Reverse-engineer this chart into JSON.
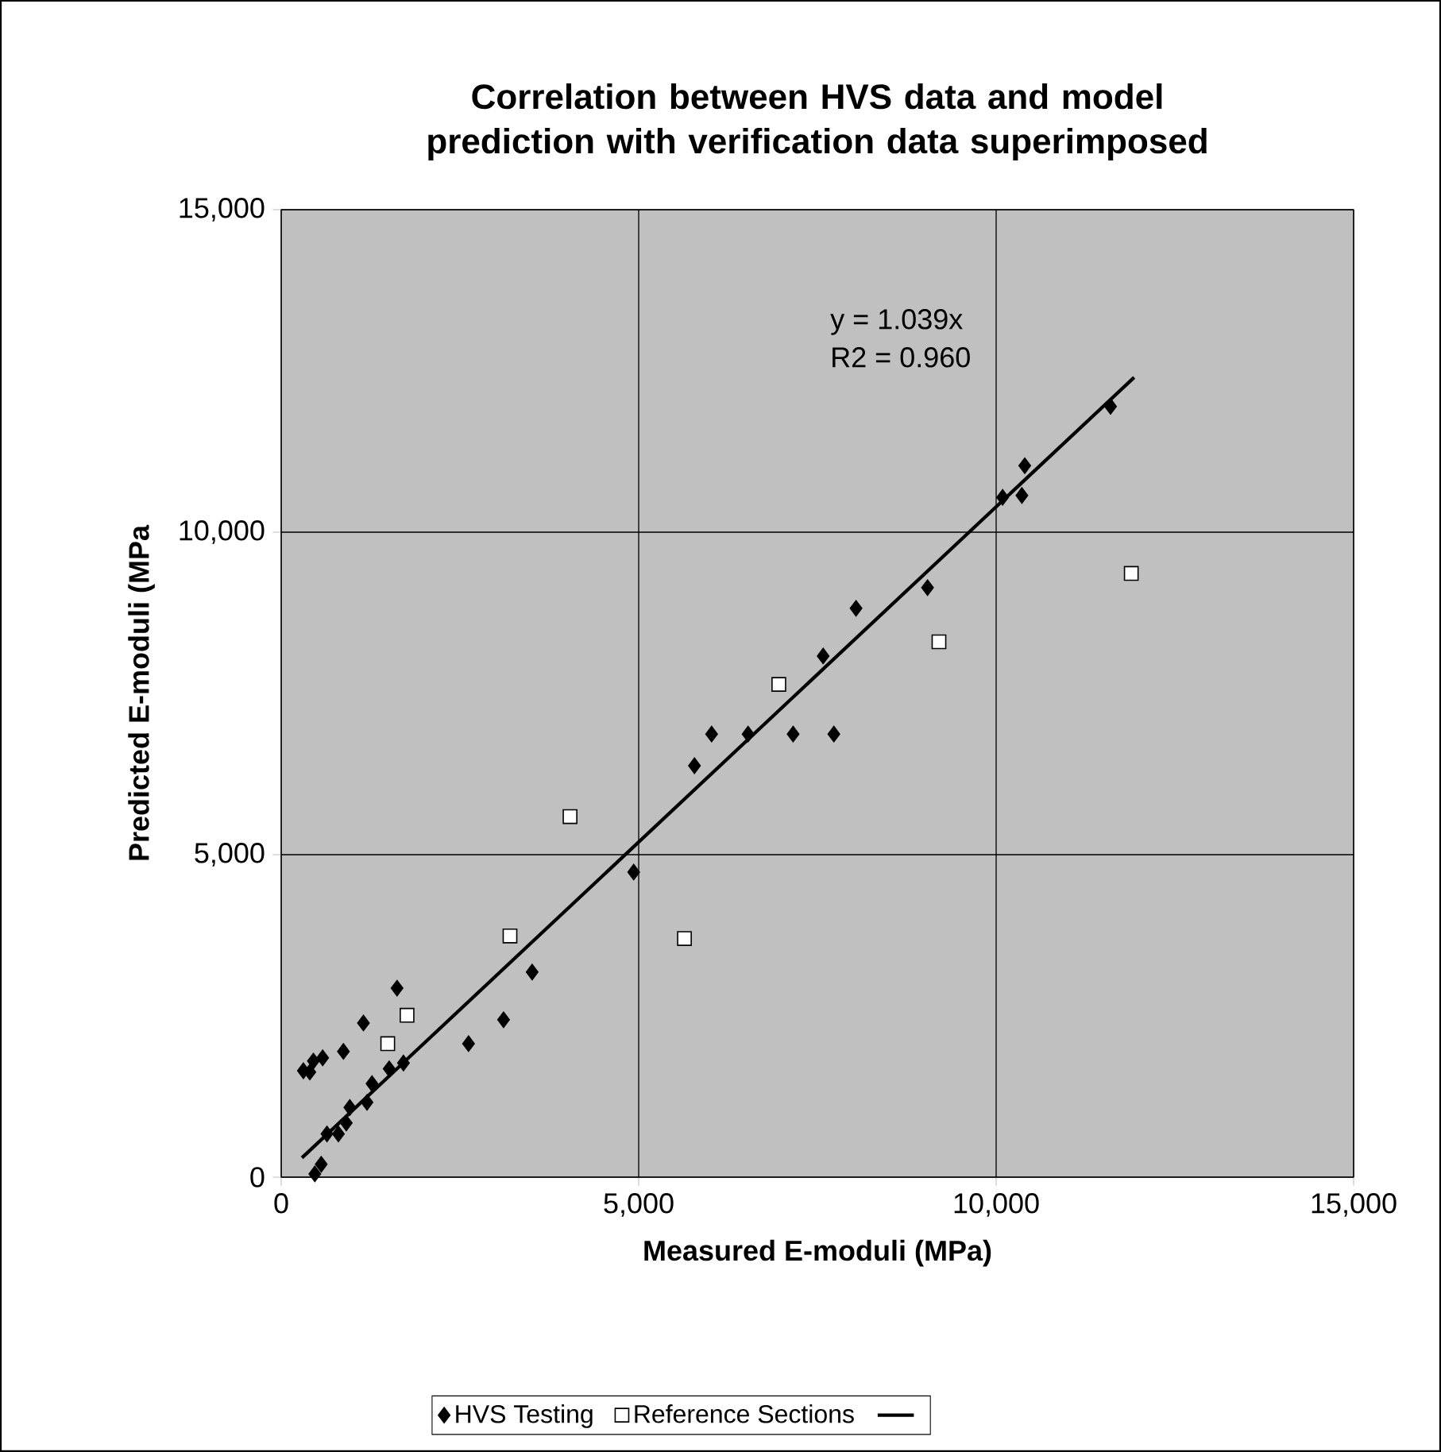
{
  "chart_data": {
    "type": "scatter",
    "title": "Correlation between HVS data and model prediction with verification data superimposed",
    "xlabel": "Measured E-moduli (MPa)",
    "ylabel": "Predicted E-moduli (MPa",
    "xlim": [
      0,
      15000
    ],
    "ylim": [
      0,
      15000
    ],
    "xticks": [
      0,
      {
        "value": 5000,
        "label": "5,000"
      },
      {
        "value": 10000,
        "label": "10,000"
      },
      {
        "value": 15000,
        "label": "15,000"
      }
    ],
    "yticks": [
      0,
      {
        "value": 5000,
        "label": "5,000"
      },
      {
        "value": 10000,
        "label": "10,000"
      },
      {
        "value": 15000,
        "label": "15,000"
      }
    ],
    "grid": true,
    "legend": "bottom",
    "annotations": [
      "y = 1.039x",
      "R2 = 0.960"
    ],
    "series": [
      {
        "name": "HVS Testing",
        "marker": "diamond",
        "color": "#000000",
        "x": [
          310,
          400,
          450,
          580,
          870,
          1150,
          1620,
          1710,
          1510,
          1270,
          1200,
          960,
          910,
          800,
          640,
          560,
          470,
          2620,
          3110,
          3510,
          4930,
          5780,
          6020,
          6530,
          7160,
          7730,
          7580,
          8040,
          9040,
          10090,
          10360,
          10400,
          11600
        ],
        "values": [
          1650,
          1630,
          1800,
          1850,
          1950,
          2390,
          2930,
          1770,
          1680,
          1450,
          1160,
          1080,
          840,
          670,
          670,
          200,
          50,
          2070,
          2440,
          3180,
          4730,
          6380,
          6870,
          6870,
          6870,
          6870,
          8080,
          8820,
          9140,
          10540,
          10570,
          11030,
          11950
        ]
      },
      {
        "name": "Reference Sections",
        "marker": "square",
        "color": "#ffffff",
        "x": [
          1490,
          1760,
          3200,
          4040,
          5640,
          6960,
          9200,
          11890
        ],
        "values": [
          2070,
          2510,
          3740,
          5590,
          3700,
          7640,
          8300,
          9360
        ]
      },
      {
        "type": "line",
        "marker": "none",
        "line_style": "solid",
        "color": "#000000",
        "x": [
          290,
          11930
        ],
        "values": [
          300,
          12400
        ]
      }
    ]
  }
}
